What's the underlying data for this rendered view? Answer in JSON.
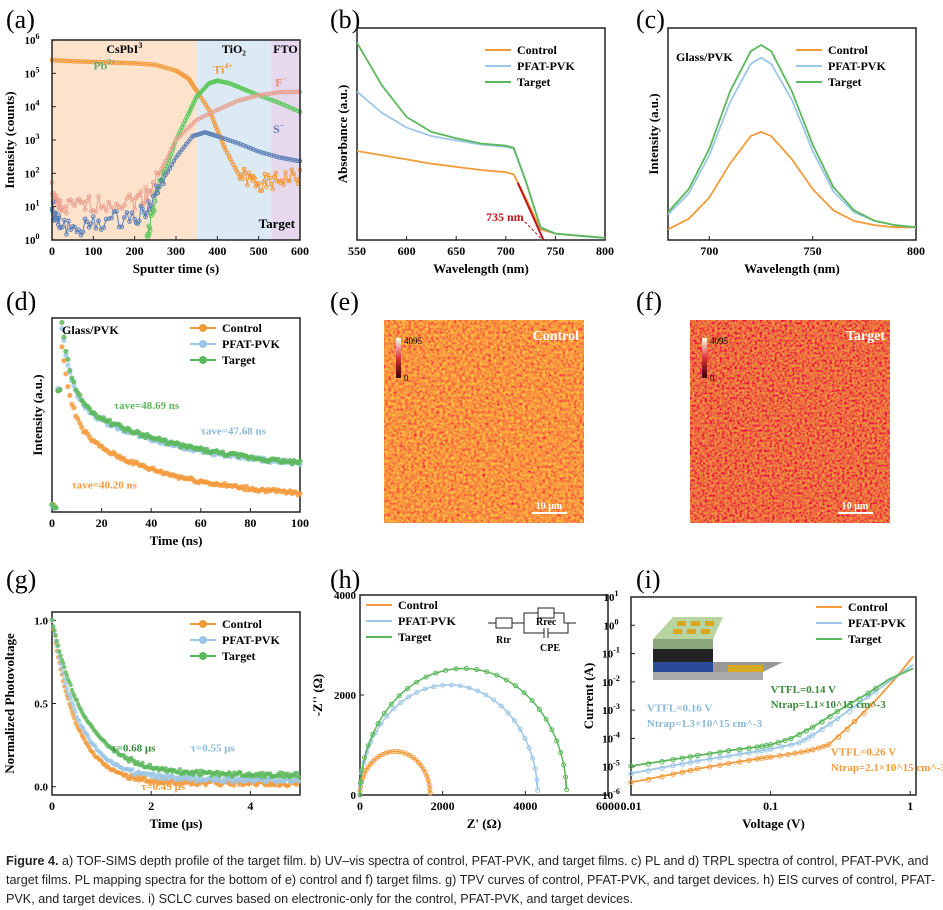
{
  "colors": {
    "control": "#f39a3c",
    "pfat": "#9cc7e6",
    "target": "#5cb85c",
    "pb": "#f39a3c",
    "ti": "#5cc85c",
    "f": "#e8a090",
    "s": "#5b7fb5",
    "annot_red": "#c0161b"
  },
  "panels": [
    "(a)",
    "(b)",
    "(c)",
    "(d)",
    "(e)",
    "(f)",
    "(g)",
    "(h)",
    "(i)"
  ],
  "chart_data": [
    {
      "id": "a",
      "type": "scatter",
      "xlabel": "Sputter time (s)",
      "ylabel": "Intensity (counts)",
      "xlim": [
        0,
        600
      ],
      "ylim": [
        1,
        1000000
      ],
      "yscale": "log",
      "xticks": [
        0,
        100,
        200,
        300,
        400,
        500,
        600
      ],
      "yticks": [
        "10^0",
        "10^1",
        "10^2",
        "10^3",
        "10^4",
        "10^5",
        "10^6"
      ],
      "regions": [
        {
          "label": "CsPbI3",
          "from": 0,
          "to": 350,
          "color": "#fde3cc"
        },
        {
          "label": "TiO2",
          "from": 350,
          "to": 530,
          "color": "#dceaf5"
        },
        {
          "label": "FTO",
          "from": 530,
          "to": 600,
          "color": "#e6d9ee"
        }
      ],
      "annotation": "Target",
      "series": [
        {
          "name": "Pb2+",
          "color": "#f39a3c",
          "x": [
            0,
            50,
            100,
            150,
            200,
            250,
            300,
            330,
            350,
            380,
            400,
            420,
            450,
            480,
            500,
            530,
            560,
            600
          ],
          "y": [
            250000,
            230000,
            220000,
            210000,
            200000,
            180000,
            120000,
            70000,
            30000,
            8000,
            2000,
            500,
            100,
            60,
            55,
            50,
            70,
            80
          ]
        },
        {
          "name": "Ti4+",
          "color": "#5cc85c",
          "x": [
            230,
            240,
            260,
            280,
            300,
            330,
            350,
            380,
            400,
            430,
            460,
            500,
            550,
            600
          ],
          "y": [
            1,
            5,
            40,
            200,
            1000,
            6000,
            20000,
            50000,
            60000,
            50000,
            35000,
            22000,
            13000,
            7000
          ]
        },
        {
          "name": "F−",
          "color": "#e8a090",
          "x": [
            0,
            10,
            20,
            60,
            100,
            150,
            200,
            230,
            260,
            300,
            350,
            400,
            450,
            500,
            550,
            600
          ],
          "y": [
            40,
            12,
            9,
            10,
            12,
            13,
            15,
            25,
            100,
            1000,
            4000,
            8000,
            15000,
            22000,
            27000,
            28000
          ]
        },
        {
          "name": "S−",
          "color": "#5b7fb5",
          "x": [
            0,
            10,
            20,
            60,
            100,
            150,
            200,
            230,
            260,
            300,
            340,
            370,
            400,
            450,
            500,
            550,
            600
          ],
          "y": [
            10,
            4,
            3,
            2,
            3,
            4,
            5,
            8,
            40,
            300,
            1300,
            1700,
            1300,
            800,
            450,
            300,
            230
          ]
        }
      ]
    },
    {
      "id": "b",
      "type": "line",
      "xlabel": "Wavelength (nm)",
      "ylabel": "Absorbance (a.u.)",
      "xlim": [
        550,
        800
      ],
      "ylim": [
        0,
        1
      ],
      "xticks": [
        550,
        600,
        650,
        700,
        750,
        800
      ],
      "annotation": "735 nm",
      "legend": "top-right",
      "series": [
        {
          "name": "Control",
          "color": "#f39a3c",
          "x": [
            550,
            575,
            600,
            625,
            650,
            675,
            700,
            708,
            720,
            735,
            750,
            775,
            800
          ],
          "y": [
            0.42,
            0.4,
            0.38,
            0.36,
            0.345,
            0.33,
            0.32,
            0.31,
            0.2,
            0.05,
            0.03,
            0.02,
            0.01
          ]
        },
        {
          "name": "PFAT-PVK",
          "color": "#9cc7e6",
          "x": [
            550,
            575,
            600,
            625,
            650,
            675,
            700,
            708,
            720,
            735,
            750,
            775,
            800
          ],
          "y": [
            0.7,
            0.6,
            0.53,
            0.49,
            0.47,
            0.45,
            0.44,
            0.43,
            0.28,
            0.06,
            0.03,
            0.02,
            0.01
          ]
        },
        {
          "name": "Target",
          "color": "#5cb85c",
          "x": [
            550,
            575,
            600,
            625,
            650,
            675,
            700,
            708,
            720,
            735,
            750,
            775,
            800
          ],
          "y": [
            0.93,
            0.73,
            0.58,
            0.51,
            0.48,
            0.455,
            0.445,
            0.435,
            0.28,
            0.06,
            0.03,
            0.02,
            0.01
          ]
        }
      ]
    },
    {
      "id": "c",
      "type": "line",
      "xlabel": "Wavelength (nm)",
      "ylabel": "Intensity (a.u.)",
      "xlim": [
        680,
        800
      ],
      "ylim": [
        0,
        1
      ],
      "xticks": [
        700,
        750,
        800
      ],
      "annotation": "Glass/PVK",
      "legend": "top-right",
      "series": [
        {
          "name": "Control",
          "color": "#f39a3c",
          "x": [
            680,
            690,
            700,
            710,
            720,
            725,
            730,
            740,
            750,
            760,
            770,
            780,
            790,
            800
          ],
          "y": [
            0.05,
            0.1,
            0.2,
            0.36,
            0.49,
            0.51,
            0.49,
            0.38,
            0.24,
            0.14,
            0.09,
            0.07,
            0.06,
            0.06
          ]
        },
        {
          "name": "PFAT-PVK",
          "color": "#9cc7e6",
          "x": [
            680,
            690,
            700,
            710,
            720,
            725,
            730,
            740,
            750,
            760,
            770,
            780,
            790,
            800
          ],
          "y": [
            0.12,
            0.22,
            0.4,
            0.65,
            0.83,
            0.86,
            0.83,
            0.66,
            0.42,
            0.23,
            0.13,
            0.09,
            0.07,
            0.06
          ]
        },
        {
          "name": "Target",
          "color": "#5cb85c",
          "x": [
            680,
            690,
            700,
            710,
            720,
            725,
            730,
            740,
            750,
            760,
            770,
            780,
            790,
            800
          ],
          "y": [
            0.13,
            0.24,
            0.43,
            0.7,
            0.89,
            0.92,
            0.89,
            0.7,
            0.45,
            0.25,
            0.14,
            0.09,
            0.07,
            0.06
          ]
        }
      ]
    },
    {
      "id": "d",
      "type": "scatter",
      "xlabel": "Time (ns)",
      "ylabel": "Intensity (a.u.)",
      "xlim": [
        0,
        100
      ],
      "ylim": [
        0,
        1
      ],
      "xticks": [
        0,
        20,
        40,
        60,
        80,
        100
      ],
      "annotation": "Glass/PVK",
      "legend": "top-right",
      "labels": [
        {
          "text": "τave=48.69 ns",
          "series": "Target"
        },
        {
          "text": "τave=47.68 ns",
          "series": "PFAT-PVK"
        },
        {
          "text": "τave=40.20 ns",
          "series": "Control"
        }
      ],
      "series": [
        {
          "name": "Control",
          "color": "#f39a3c",
          "tau": 40.2,
          "peak": 0.85,
          "base": 0.06
        },
        {
          "name": "PFAT-PVK",
          "color": "#9cc7e6",
          "tau": 47.68,
          "peak": 0.95,
          "base": 0.2
        },
        {
          "name": "Target",
          "color": "#5cb85c",
          "tau": 48.69,
          "peak": 0.97,
          "base": 0.2
        }
      ]
    },
    {
      "id": "g",
      "type": "scatter",
      "xlabel": "Time (μs)",
      "ylabel": "Normalized Photovoltage",
      "xlim": [
        0,
        5
      ],
      "ylim": [
        -0.05,
        1.05
      ],
      "xticks": [
        0,
        2,
        4
      ],
      "yticks": [
        0.0,
        0.5,
        1.0
      ],
      "legend": "top-right",
      "labels": [
        {
          "text": "τ=0.68 μs",
          "series": "Target"
        },
        {
          "text": "τ=0.55 μs",
          "series": "PFAT-PVK"
        },
        {
          "text": "τ=0.49 μs",
          "series": "Control"
        }
      ],
      "series": [
        {
          "name": "Control",
          "color": "#f39a3c",
          "tau": 0.49,
          "base": 0.02
        },
        {
          "name": "PFAT-PVK",
          "color": "#9cc7e6",
          "tau": 0.55,
          "base": 0.04
        },
        {
          "name": "Target",
          "color": "#5cb85c",
          "tau": 0.68,
          "base": 0.07
        }
      ]
    },
    {
      "id": "h",
      "type": "scatter",
      "xlabel": "Z' (Ω)",
      "ylabel": "-Z'' (Ω)",
      "xlim": [
        0,
        6000
      ],
      "ylim": [
        0,
        4000
      ],
      "xticks": [
        0,
        2000,
        4000,
        6000
      ],
      "yticks": [
        0,
        2000,
        4000
      ],
      "legend": "top-left",
      "circuit": {
        "r1": "Rtr",
        "r2": "Rrec",
        "c": "CPE"
      },
      "series": [
        {
          "name": "Control",
          "color": "#f39a3c",
          "x0": 0,
          "x1": 1700,
          "peak": 870
        },
        {
          "name": "PFAT-PVK",
          "color": "#9cc7e6",
          "x0": 0,
          "x1": 4300,
          "peak": 2200
        },
        {
          "name": "Target",
          "color": "#5cb85c",
          "x0": 0,
          "x1": 5000,
          "peak": 2530
        }
      ]
    },
    {
      "id": "i",
      "type": "line",
      "xlabel": "Voltage (V)",
      "ylabel": "Current (A)",
      "xscale": "log",
      "yscale": "log",
      "xlim": [
        0.01,
        1.1
      ],
      "ylim": [
        1e-06,
        10
      ],
      "xticks": [
        "0.01",
        "0.1",
        "1"
      ],
      "yticks": [
        "10^-6",
        "10^-5",
        "10^-4",
        "10^-3",
        "10^-2",
        "10^-1",
        "10^0",
        "10^1"
      ],
      "legend": "top-right",
      "inset_layers": [
        "Ag",
        "PCBM",
        "CsPbI3",
        "TiO2",
        "FTO glass",
        "Ag"
      ],
      "labels": [
        {
          "series": "Target",
          "l1": "VTFL=0.14 V",
          "l2": "Ntrap=1.1×10^15 cm^-3"
        },
        {
          "series": "PFAT-PVK",
          "l1": "VTFL=0.16 V",
          "l2": "Ntrap=1.3×10^15 cm^-3"
        },
        {
          "series": "Control",
          "l1": "VTFL=0.26 V",
          "l2": "Ntrap=2.1×10^15 cm^-3"
        }
      ],
      "series": [
        {
          "name": "Control",
          "color": "#f39a3c",
          "x": [
            0.01,
            0.02,
            0.03,
            0.05,
            0.08,
            0.1,
            0.15,
            0.2,
            0.26,
            0.4,
            0.6,
            0.8,
            1.05
          ],
          "y": [
            2.8e-06,
            5.5e-06,
            8.5e-06,
            1.3e-05,
            1.9e-05,
            2.2e-05,
            3e-05,
            4e-05,
            6e-05,
            0.0004,
            0.003,
            0.015,
            0.08
          ]
        },
        {
          "name": "PFAT-PVK",
          "color": "#9cc7e6",
          "x": [
            0.01,
            0.02,
            0.03,
            0.05,
            0.08,
            0.1,
            0.16,
            0.2,
            0.3,
            0.5,
            0.7,
            1.05
          ],
          "y": [
            5.8e-06,
            1.1e-05,
            1.6e-05,
            2.4e-05,
            3.5e-05,
            4.2e-05,
            7e-05,
            0.00013,
            0.0005,
            0.003,
            0.01,
            0.04
          ]
        },
        {
          "name": "Target",
          "color": "#5cb85c",
          "x": [
            0.01,
            0.02,
            0.03,
            0.05,
            0.08,
            0.1,
            0.14,
            0.2,
            0.3,
            0.5,
            0.7,
            1.05
          ],
          "y": [
            1.05e-05,
            1.8e-05,
            2.5e-05,
            3.7e-05,
            5e-05,
            6e-05,
            0.0001,
            0.00025,
            0.0009,
            0.004,
            0.012,
            0.03
          ]
        }
      ]
    }
  ],
  "maps": [
    {
      "id": "e",
      "label": "Control",
      "cb_max": "4095",
      "cb_min": "0",
      "scale": "10 μm"
    },
    {
      "id": "f",
      "label": "Target",
      "cb_max": "4095",
      "cb_min": "0",
      "scale": "10 μm"
    }
  ],
  "caption": {
    "bold": "Figure 4.",
    "text": " a) TOF-SIMS depth profile of the target film. b) UV–vis spectra of control, PFAT-PVK, and target films. c) PL and d) TRPL spectra of control, PFAT-PVK, and target films. PL mapping spectra for the bottom of e) control and f) target films. g) TPV curves of control, PFAT-PVK, and target devices. h) EIS curves of control, PFAT-PVK, and target devices. i) SCLC curves based on electronic-only for the control, PFAT-PVK, and target devices."
  }
}
